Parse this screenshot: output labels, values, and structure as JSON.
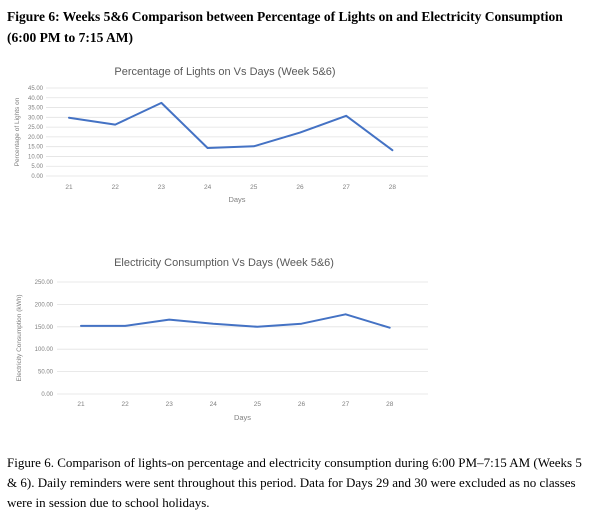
{
  "doc": {
    "heading": "Figure 6: Weeks 5&6 Comparison between Percentage of Lights on and Electricity Consumption (6:00 PM to 7:15 AM)",
    "caption": "Figure 6. Comparison of lights-on percentage and electricity consumption during 6:00 PM–7:15 AM (Weeks 5 & 6). Daily reminders were sent throughout this period. Data for Days 29 and 30 were excluded as no classes were in session due to school holidays."
  },
  "colors": {
    "line": "#4472c4",
    "grid": "#e2e2e2",
    "tick_text": "#808080",
    "title_text": "#595959"
  },
  "chart_data": [
    {
      "type": "line",
      "title": "Percentage of Lights on Vs Days (Week 5&6)",
      "xlabel": "Days",
      "ylabel": "Percentage of Lights on",
      "x": [
        21,
        22,
        23,
        24,
        25,
        26,
        27,
        28
      ],
      "values": [
        29.8,
        26.3,
        37.4,
        14.3,
        15.2,
        22.2,
        30.8,
        13.2
      ],
      "ylim": [
        0,
        45
      ],
      "ytick_step": 5,
      "ytick_labels": [
        "0.00",
        "5.00",
        "10.00",
        "15.00",
        "20.00",
        "25.00",
        "30.00",
        "35.00",
        "40.00",
        "45.00"
      ],
      "grid": true,
      "legend": "none"
    },
    {
      "type": "line",
      "title": "Electricity Consumption Vs Days (Week 5&6)",
      "xlabel": "Days",
      "ylabel": "Electricity Consumption (kWh)",
      "x": [
        21,
        22,
        23,
        24,
        25,
        26,
        27,
        28
      ],
      "values": [
        152,
        152,
        166,
        157,
        150,
        157,
        178,
        148
      ],
      "ylim": [
        0,
        250
      ],
      "ytick_step": 50,
      "ytick_labels": [
        "0.00",
        "50.00",
        "100.00",
        "150.00",
        "200.00",
        "250.00"
      ],
      "grid": true,
      "legend": "none"
    }
  ]
}
